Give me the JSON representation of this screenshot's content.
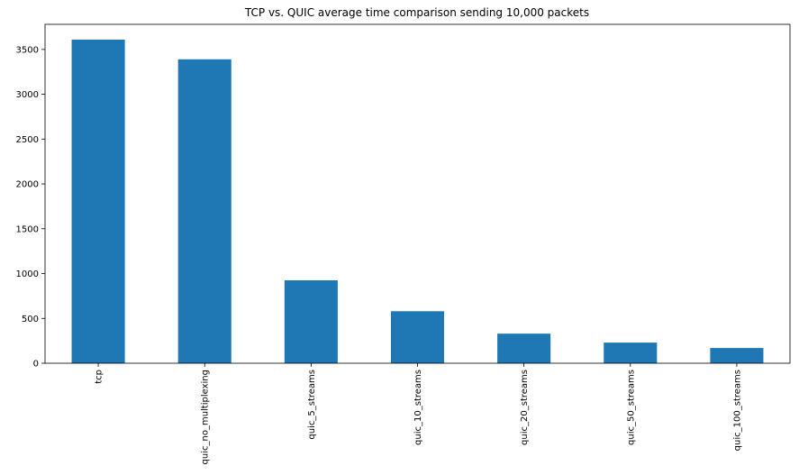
{
  "chart_data": {
    "type": "bar",
    "title": "TCP vs. QUIC average time comparison sending 10,000 packets",
    "xlabel": "",
    "ylabel": "",
    "categories": [
      "tcp",
      "quic_no_multiplexing",
      "quic_5_streams",
      "quic_10_streams",
      "quic_20_streams",
      "quic_50_streams",
      "quic_100_streams"
    ],
    "values": [
      3610,
      3390,
      925,
      580,
      330,
      230,
      170
    ],
    "ylim": [
      0,
      3780
    ],
    "yticks": [
      0,
      500,
      1000,
      1500,
      2000,
      2500,
      3000,
      3500
    ],
    "ytick_labels": [
      "0",
      "500",
      "1000",
      "1500",
      "2000",
      "2500",
      "3000",
      "3500"
    ],
    "grid": false,
    "legend": "none",
    "bar_color": "#1f77b4",
    "xtick_rotation": "vertical"
  }
}
